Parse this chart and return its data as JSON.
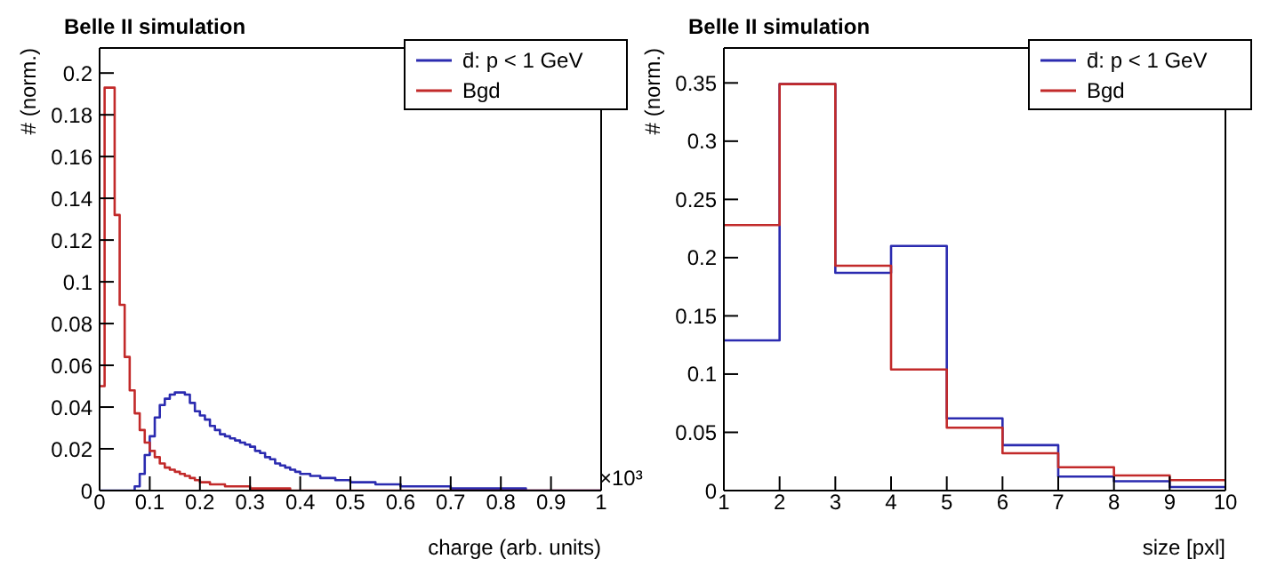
{
  "chart_data": [
    {
      "type": "histogram",
      "title": "Belle II simulation",
      "xlabel": "charge (arb. units)",
      "ylabel": "# (norm.)",
      "annotations": [
        "×10³"
      ],
      "bins": [
        0,
        0.01,
        0.02,
        0.03,
        0.04,
        0.05,
        0.06,
        0.07,
        0.08,
        0.09,
        0.1,
        0.11,
        0.12,
        0.13,
        0.14,
        0.15,
        0.16,
        0.17,
        0.18,
        0.19,
        0.2,
        0.21,
        0.22,
        0.23,
        0.24,
        0.25,
        0.26,
        0.27,
        0.28,
        0.29,
        0.3,
        0.31,
        0.32,
        0.33,
        0.34,
        0.35,
        0.36,
        0.37,
        0.38,
        0.39,
        0.4,
        0.41,
        0.42,
        0.43,
        0.44,
        0.45,
        0.46,
        0.47,
        0.48,
        0.49,
        0.5,
        0.55,
        0.6,
        0.65,
        0.7,
        0.75,
        0.8,
        0.85,
        0.9,
        0.95,
        1.0
      ],
      "series": [
        {
          "name": "d̄: p < 1 GeV",
          "color": "#2b2bb0",
          "values": [
            0,
            0,
            0,
            0,
            0,
            0,
            0,
            0.002,
            0.008,
            0.017,
            0.026,
            0.035,
            0.041,
            0.044,
            0.046,
            0.047,
            0.047,
            0.046,
            0.042,
            0.038,
            0.036,
            0.034,
            0.031,
            0.029,
            0.027,
            0.026,
            0.025,
            0.024,
            0.023,
            0.022,
            0.021,
            0.019,
            0.018,
            0.016,
            0.015,
            0.013,
            0.012,
            0.011,
            0.01,
            0.009,
            0.008,
            0.008,
            0.007,
            0.007,
            0.006,
            0.006,
            0.006,
            0.005,
            0.005,
            0.005,
            0.004,
            0.003,
            0.002,
            0.002,
            0.001,
            0.001,
            0.001,
            0,
            0,
            0
          ]
        },
        {
          "name": "Bgd",
          "color": "#c22a2a",
          "values": [
            0.05,
            0.193,
            0.193,
            0.132,
            0.089,
            0.064,
            0.048,
            0.037,
            0.029,
            0.023,
            0.019,
            0.016,
            0.013,
            0.011,
            0.01,
            0.009,
            0.008,
            0.007,
            0.006,
            0.005,
            0.004,
            0.004,
            0.003,
            0.003,
            0.003,
            0.002,
            0.002,
            0.002,
            0.002,
            0.002,
            0.001,
            0.001,
            0.001,
            0.001,
            0.001,
            0.001,
            0.001,
            0.001,
            0,
            0,
            0,
            0,
            0,
            0,
            0,
            0,
            0,
            0,
            0,
            0,
            0,
            0,
            0,
            0,
            0,
            0,
            0,
            0,
            0,
            0
          ]
        }
      ],
      "xlim": [
        0,
        1
      ],
      "xticks": [
        0,
        0.1,
        0.2,
        0.3,
        0.4,
        0.5,
        0.6,
        0.7,
        0.8,
        0.9,
        1
      ],
      "ylim": [
        0,
        0.212
      ],
      "yticks": [
        0,
        0.02,
        0.04,
        0.06,
        0.08,
        0.1,
        0.12,
        0.14,
        0.16,
        0.18,
        0.2
      ],
      "grid": false,
      "legend": "top right"
    },
    {
      "type": "histogram",
      "title": "Belle II simulation",
      "xlabel": "size [pxl]",
      "ylabel": "# (norm.)",
      "bins": [
        1,
        2,
        3,
        4,
        5,
        6,
        7,
        8,
        9,
        10
      ],
      "series": [
        {
          "name": "d̄: p < 1 GeV",
          "color": "#2b2bb0",
          "values": [
            0.129,
            0.349,
            0.187,
            0.21,
            0.062,
            0.039,
            0.012,
            0.008,
            0.003
          ]
        },
        {
          "name": "Bgd",
          "color": "#c22a2a",
          "values": [
            0.228,
            0.349,
            0.193,
            0.104,
            0.054,
            0.032,
            0.02,
            0.013,
            0.009
          ]
        }
      ],
      "xlim": [
        1,
        10
      ],
      "xticks": [
        1,
        2,
        3,
        4,
        5,
        6,
        7,
        8,
        9,
        10
      ],
      "ylim": [
        0,
        0.38
      ],
      "yticks": [
        0,
        0.05,
        0.1,
        0.15,
        0.2,
        0.25,
        0.3,
        0.35
      ],
      "grid": false,
      "legend": "top right"
    }
  ]
}
